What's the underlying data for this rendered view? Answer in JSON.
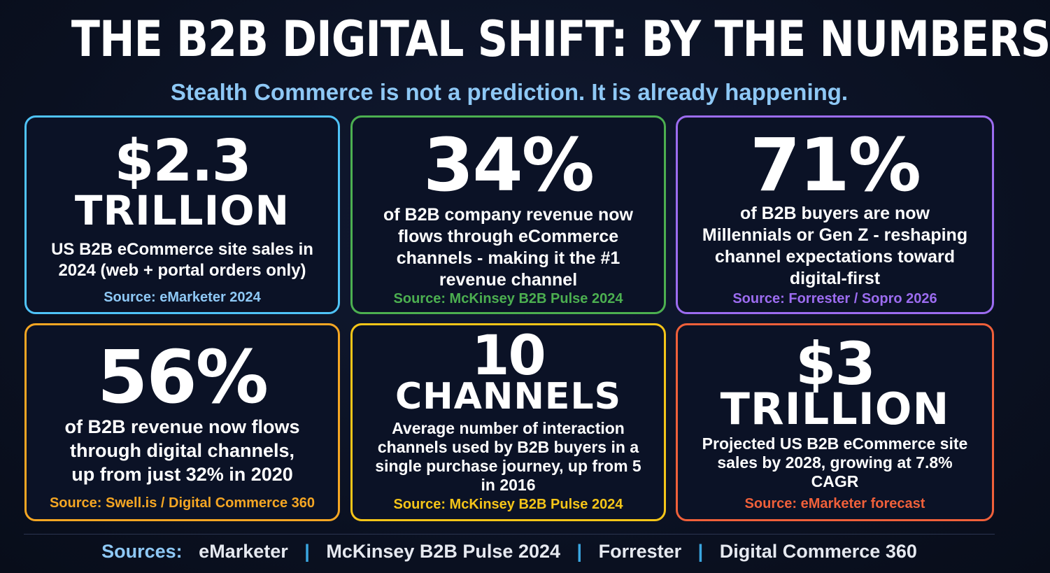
{
  "header": {
    "title": "THE B2B DIGITAL SHIFT: BY THE NUMBERS",
    "subtitle": "Stealth Commerce is not a prediction. It is already happening."
  },
  "colors": {
    "blue": "#4fc3f7",
    "green": "#4caf50",
    "purple": "#9c6cf0",
    "orange": "#f5a623",
    "yellow": "#f5c518",
    "red": "#f0603a",
    "source_blue": "#8ec8f5"
  },
  "cards": [
    {
      "big1": "$2.3",
      "big2": "TRILLION",
      "desc": "US B2B eCommerce site sales in 2024 (web + portal orders only)",
      "source": "Source: eMarketer 2024"
    },
    {
      "big1": "34%",
      "desc": "of B2B company revenue now flows through eCommerce channels - making it the #1 revenue channel",
      "source": "Source: McKinsey B2B Pulse 2024"
    },
    {
      "big1": "71%",
      "desc": "of B2B buyers are now Millennials or Gen Z - reshaping channel expectations toward digital-first",
      "source": "Source: Forrester / Sopro 2026"
    },
    {
      "big1": "56%",
      "desc": "of B2B revenue now flows through digital channels, up from just 32% in 2020",
      "source": "Source: Swell.is / Digital Commerce 360"
    },
    {
      "big1": "10",
      "big2": "CHANNELS",
      "desc": "Average number of interaction channels used by B2B buyers in a single purchase journey, up from 5 in 2016",
      "source": "Source: McKinsey B2B Pulse 2024"
    },
    {
      "big1": "$3",
      "big2": "TRILLION",
      "desc": "Projected US B2B eCommerce site sales by 2028, growing at 7.8% CAGR",
      "source": "Source: eMarketer forecast"
    }
  ],
  "footer": {
    "label": "Sources:",
    "items": [
      "eMarketer",
      "McKinsey B2B Pulse 2024",
      "Forrester",
      "Digital Commerce 360"
    ],
    "separator": "|"
  }
}
